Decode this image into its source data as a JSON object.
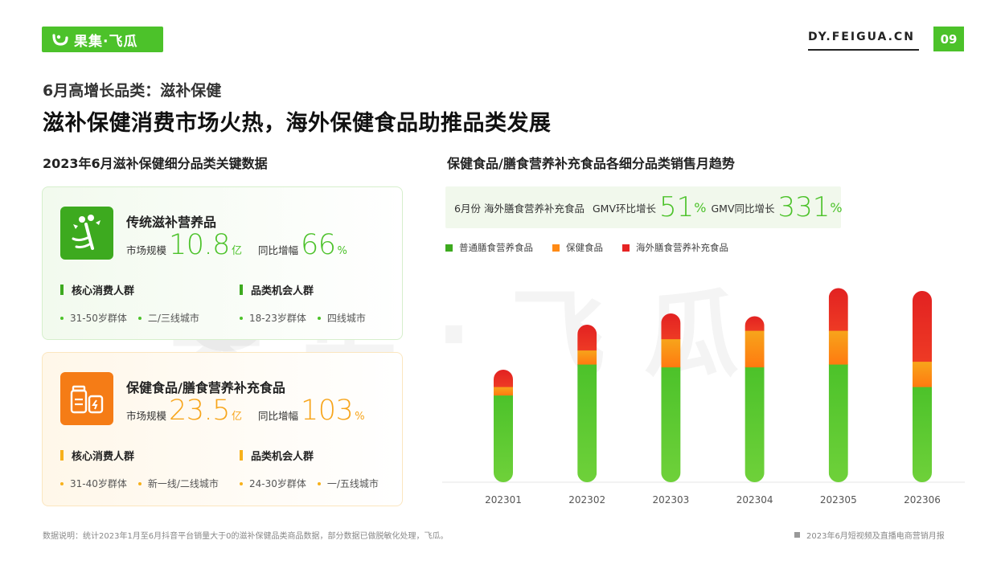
{
  "header": {
    "logo_text": "果集·飞瓜",
    "site": "DY.FEIGUA.CN",
    "page_number": "09",
    "subtitle": "6月高增长品类：滋补保健",
    "title": "滋补保健消费市场火热，海外保健食品助推品类发展"
  },
  "watermark": {
    "text": "果集·飞瓜"
  },
  "left_panel": {
    "title": "2023年6月滋补保健细分品类关键数据",
    "cards": [
      {
        "name": "传统滋补营养品",
        "icon": "ginseng-icon",
        "market_label": "市场规模",
        "market_value": "10.8",
        "market_unit": "亿",
        "yoy_label": "同比增幅",
        "yoy_value": "66",
        "yoy_unit": "%",
        "core_title": "核心消费人群",
        "core_tags": [
          "31-50岁群体",
          "二/三线城市"
        ],
        "opp_title": "品类机会人群",
        "opp_tags": [
          "18-23岁群体",
          "四线城市"
        ]
      },
      {
        "name": "保健食品/膳食营养补充食品",
        "icon": "supplement-bottles-icon",
        "market_label": "市场规模",
        "market_value": "23.5",
        "market_unit": "亿",
        "yoy_label": "同比增幅",
        "yoy_value": "103",
        "yoy_unit": "%",
        "core_title": "核心消费人群",
        "core_tags": [
          "31-40岁群体",
          "新一线/二线城市"
        ],
        "opp_title": "品类机会人群",
        "opp_tags": [
          "24-30岁群体",
          "一/五线城市"
        ]
      }
    ]
  },
  "right_panel": {
    "title": "保健食品/膳食营养补充食品各细分品类销售月趋势",
    "highlight": {
      "month": "6月份",
      "category": "海外膳食营养补充食品",
      "mom_label": "GMV环比增长",
      "mom_value": "51",
      "mom_unit": "%",
      "yoy_label": "GMV同比增长",
      "yoy_value": "331",
      "yoy_unit": "%"
    }
  },
  "colors": {
    "accent": "#4cc22a",
    "green": "#4cc22a",
    "orange": "#ff8a15",
    "red": "#e62323"
  },
  "chart_data": {
    "type": "bar",
    "stacked": true,
    "categories": [
      "202301",
      "202302",
      "202303",
      "202304",
      "202305",
      "202306"
    ],
    "series": [
      {
        "name": "普通膳食营养食品",
        "color": "#4cc22a",
        "values": [
          31,
          42,
          41,
          41,
          42,
          34
        ]
      },
      {
        "name": "保健食品",
        "color": "#ff8a15",
        "values": [
          3,
          5,
          10,
          13,
          12,
          9
        ]
      },
      {
        "name": "海外膳食营养补充食品",
        "color": "#e62323",
        "values": [
          6,
          9,
          9,
          5,
          15,
          25
        ]
      }
    ],
    "legend_position": "top-left",
    "grid": false,
    "y_axis_shown": false,
    "value_labels_shown": false
  },
  "footer": {
    "note": "数据说明：统计2023年1月至6月抖音平台销量大于0的滋补保健品类商品数据，部分数据已做脱敏化处理，飞瓜。",
    "report": "2023年6月短视频及直播电商营销月报"
  }
}
